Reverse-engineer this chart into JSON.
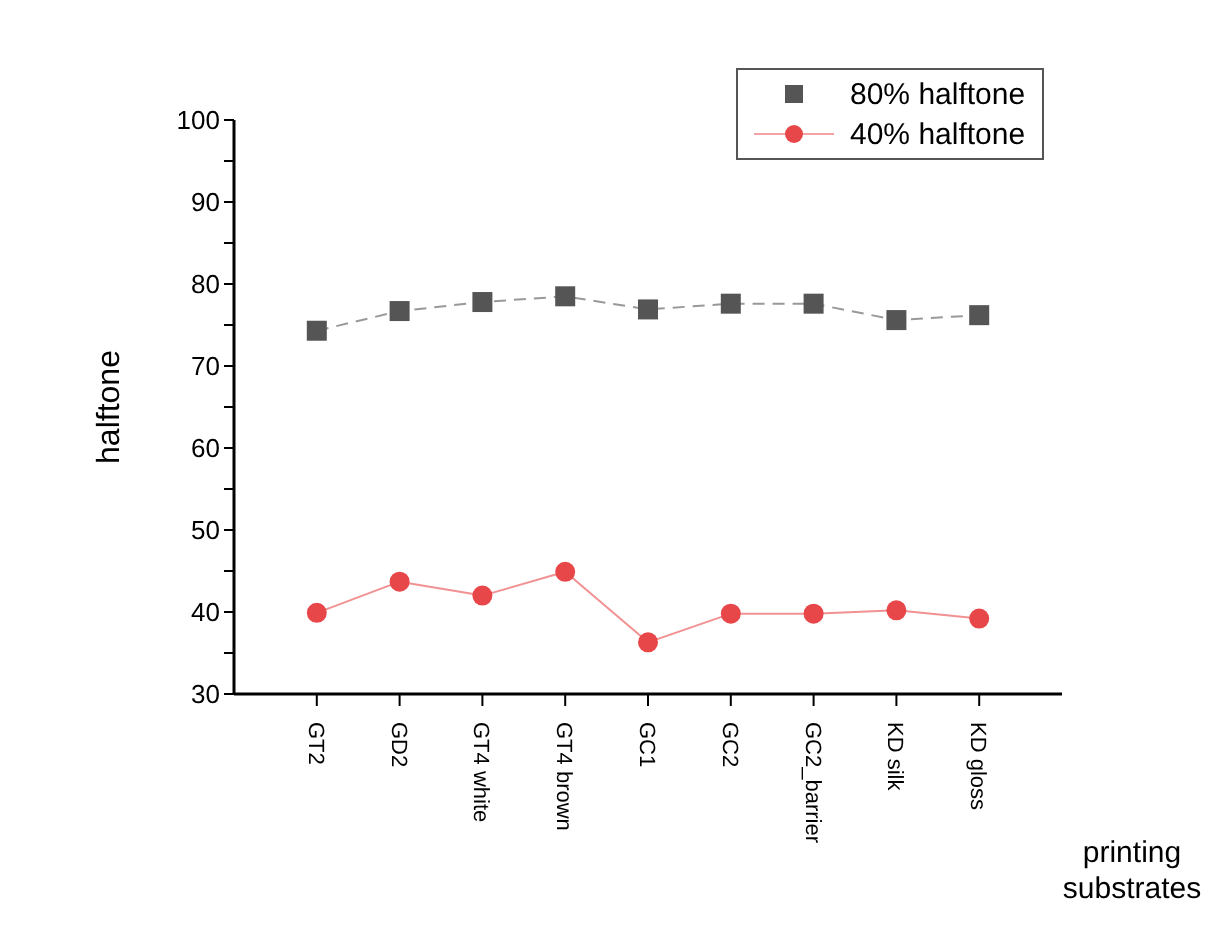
{
  "chart_data": {
    "type": "line",
    "xlabel": "printing substrates",
    "ylabel": "halftone",
    "categories": [
      "GT2",
      "GD2",
      "GT4 white",
      "GT4 brown",
      "GC1",
      "GC2",
      "GC2_barrier",
      "KD silk",
      "KD gloss"
    ],
    "series": [
      {
        "name": "80% halftone",
        "color": "#555555",
        "marker": "square",
        "line_style": "dashed",
        "values": [
          74.3,
          76.7,
          77.8,
          78.5,
          76.9,
          77.6,
          77.6,
          75.6,
          76.2
        ]
      },
      {
        "name": "40% halftone",
        "color": "#e8474a",
        "marker": "circle",
        "line_style": "solid",
        "values": [
          39.9,
          43.7,
          42.0,
          44.9,
          36.3,
          39.8,
          39.8,
          40.2,
          39.2
        ]
      }
    ],
    "ylim": [
      30,
      100
    ],
    "yticks": [
      30,
      {
        "value": 35,
        "label": null
      },
      40,
      {
        "value": 45,
        "label": null
      },
      50,
      {
        "value": 55,
        "label": null
      },
      60,
      {
        "value": 65,
        "label": null
      },
      70,
      {
        "value": 75,
        "label": null
      },
      80,
      {
        "value": 85,
        "label": null
      },
      90,
      {
        "value": 95,
        "label": null
      },
      100
    ],
    "legend": "top right",
    "grid": false
  }
}
